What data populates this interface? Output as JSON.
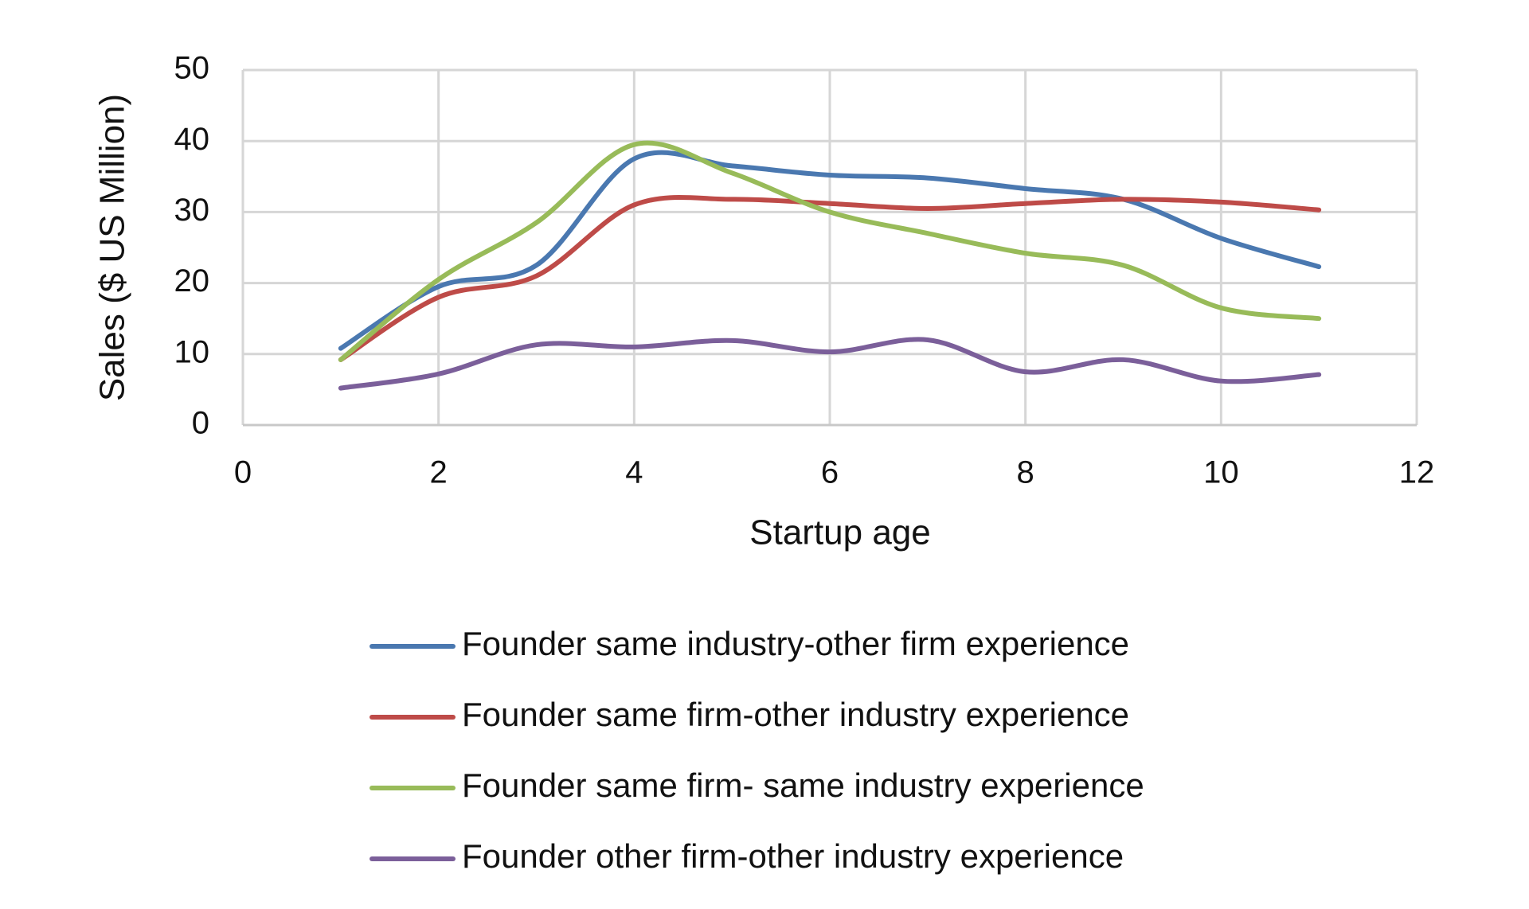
{
  "chart_data": {
    "type": "line",
    "x_label": "Startup age",
    "y_label": "Sales ($ US Million)",
    "x": [
      1,
      2,
      3,
      4,
      5,
      6,
      7,
      8,
      9,
      10,
      11
    ],
    "series": [
      {
        "name": "Founder same industry-other firm  experience",
        "color": "#4a78b0",
        "values": [
          10.8,
          19.5,
          22.5,
          37.5,
          36.5,
          35.2,
          34.8,
          33.3,
          31.8,
          26.3,
          22.3
        ]
      },
      {
        "name": "Founder same firm-other industry experience",
        "color": "#be4b48",
        "values": [
          9.2,
          18,
          21,
          31,
          31.8,
          31.2,
          30.5,
          31.2,
          31.8,
          31.4,
          30.3
        ]
      },
      {
        "name": "Founder same firm- same industry experience",
        "color": "#98bb59",
        "values": [
          9.2,
          20.5,
          28.5,
          39.5,
          35.5,
          30,
          27,
          24.2,
          22.5,
          16.5,
          15
        ]
      },
      {
        "name": "Founder other firm-other industry experience",
        "color": "#7b5f9a",
        "values": [
          5.2,
          7.2,
          11.3,
          11,
          11.9,
          10.3,
          12,
          7.5,
          9.2,
          6.2,
          7.1
        ]
      }
    ],
    "xlim": [
      0,
      12
    ],
    "xticks": [
      0,
      2,
      4,
      6,
      8,
      10,
      12
    ],
    "ylim": [
      0,
      50
    ],
    "yticks": [
      0,
      10,
      20,
      30,
      40,
      50
    ],
    "grid": true,
    "smooth": true,
    "legend": "bottom"
  }
}
